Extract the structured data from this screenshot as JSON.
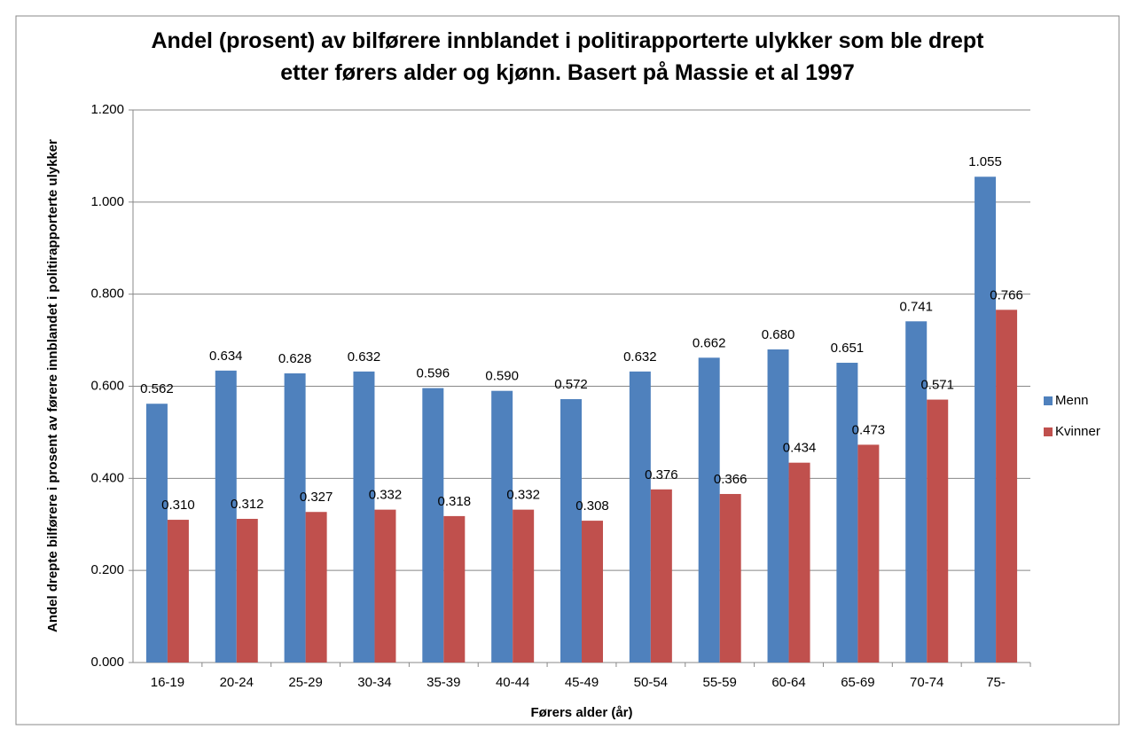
{
  "chart_data": {
    "type": "bar",
    "title": "Andel (prosent) av bilførere innblandet i politirapporterte ulykker som ble drept etter førers alder og kjønn. Basert på Massie et al 1997",
    "x_label": "Førers alder (år)",
    "y_label": "Andel drepte bilførere i prosent av førere innblandet i politirapporterte ulykker",
    "categories": [
      "16-19",
      "20-24",
      "25-29",
      "30-34",
      "35-39",
      "40-44",
      "45-49",
      "50-54",
      "55-59",
      "60-64",
      "65-69",
      "70-74",
      "75-"
    ],
    "series": [
      {
        "name": "Menn",
        "color": "#4f81bd",
        "values": [
          0.562,
          0.634,
          0.628,
          0.632,
          0.596,
          0.59,
          0.572,
          0.632,
          0.662,
          0.68,
          0.651,
          0.741,
          1.055
        ],
        "value_labels": [
          "0.562",
          "0.634",
          "0.628",
          "0.632",
          "0.596",
          "0.590",
          "0.572",
          "0.632",
          "0.662",
          "0.680",
          "0.651",
          "0.741",
          "1.055"
        ]
      },
      {
        "name": "Kvinner",
        "color": "#c0504d",
        "values": [
          0.31,
          0.312,
          0.327,
          0.332,
          0.318,
          0.332,
          0.308,
          0.376,
          0.366,
          0.434,
          0.473,
          0.571,
          0.766
        ],
        "value_labels": [
          "0.310",
          "0.312",
          "0.327",
          "0.332",
          "0.318",
          "0.332",
          "0.308",
          "0.376",
          "0.366",
          "0.434",
          "0.473",
          "0.571",
          "0.766"
        ]
      }
    ],
    "ylim": [
      0,
      1.2
    ],
    "yticks": [
      {
        "value": 0,
        "label": "0.000"
      },
      {
        "value": 0.2,
        "label": "0.200"
      },
      {
        "value": 0.4,
        "label": "0.400"
      },
      {
        "value": 0.6,
        "label": "0.600"
      },
      {
        "value": 0.8,
        "label": "0.800"
      },
      {
        "value": 1,
        "label": "1.000"
      },
      {
        "value": 1.2,
        "label": "1.200"
      }
    ],
    "grid": true,
    "legend": "right"
  }
}
